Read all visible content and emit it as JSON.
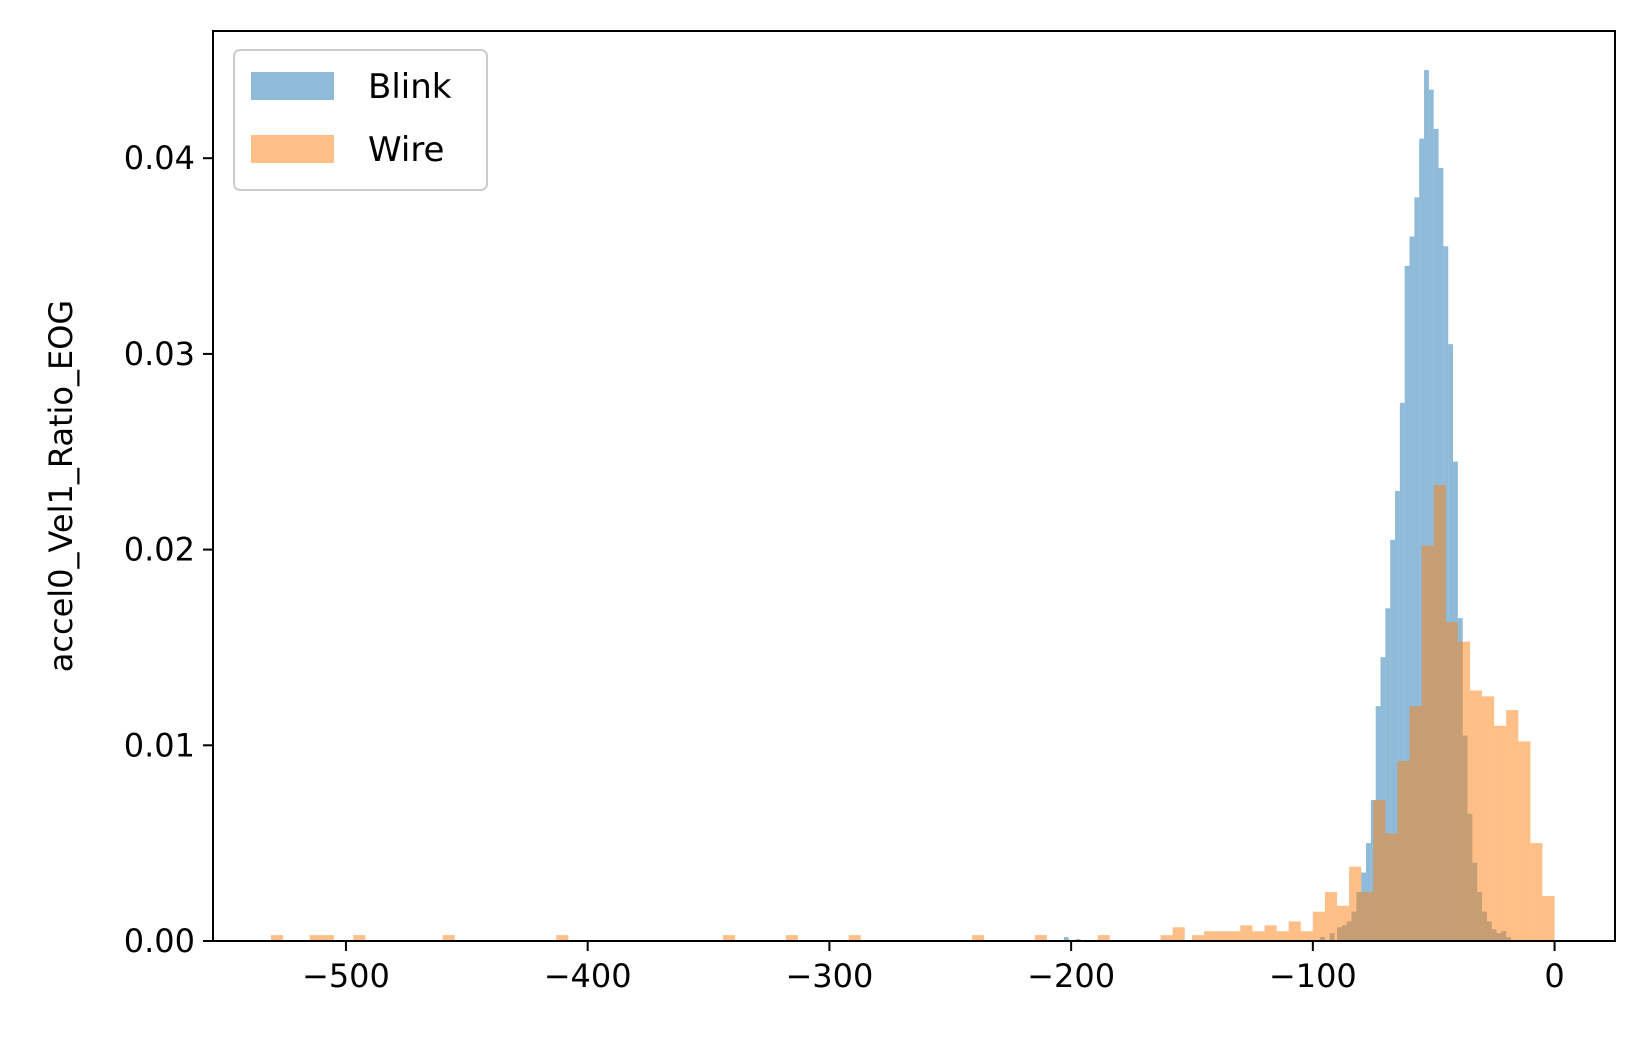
{
  "chart_data": {
    "type": "histogram",
    "title": "",
    "xlabel": "",
    "ylabel": "accel0_Vel1_Ratio_EOG",
    "xlim": [
      -555,
      25
    ],
    "ylim": [
      0,
      0.0465
    ],
    "xticks": [
      -500,
      -400,
      -300,
      -200,
      -100,
      0
    ],
    "xtick_labels": [
      "−500",
      "−400",
      "−300",
      "−200",
      "−100",
      "0"
    ],
    "yticks": [
      0,
      0.01,
      0.02,
      0.03,
      0.04
    ],
    "ytick_labels": [
      "0.00",
      "0.01",
      "0.02",
      "0.03",
      "0.04"
    ],
    "grid": false,
    "legend": {
      "position": "top-left"
    },
    "series": [
      {
        "name": "Blink",
        "color": "#1f77b4",
        "opacity": 0.5,
        "bins": [
          [
            -203,
            0.0002
          ],
          [
            -198,
            0.0001
          ],
          [
            -97,
            0.0002
          ],
          [
            -93,
            0.0004
          ],
          [
            -90,
            0.0007
          ],
          [
            -88,
            0.0008
          ],
          [
            -86,
            0.001
          ],
          [
            -84,
            0.0015
          ],
          [
            -82,
            0.0025
          ],
          [
            -80,
            0.0035
          ],
          [
            -78,
            0.005
          ],
          [
            -76,
            0.0072
          ],
          [
            -74,
            0.012
          ],
          [
            -72,
            0.0145
          ],
          [
            -70,
            0.017
          ],
          [
            -68,
            0.0205
          ],
          [
            -66,
            0.023
          ],
          [
            -64,
            0.0275
          ],
          [
            -62,
            0.0345
          ],
          [
            -60,
            0.036
          ],
          [
            -58,
            0.038
          ],
          [
            -56,
            0.041
          ],
          [
            -54,
            0.0445
          ],
          [
            -52,
            0.0435
          ],
          [
            -50,
            0.0415
          ],
          [
            -48,
            0.0395
          ],
          [
            -46,
            0.0355
          ],
          [
            -44,
            0.0305
          ],
          [
            -42,
            0.0245
          ],
          [
            -40,
            0.0165
          ],
          [
            -38,
            0.0105
          ],
          [
            -36,
            0.0065
          ],
          [
            -34,
            0.004
          ],
          [
            -32,
            0.0025
          ],
          [
            -30,
            0.0015
          ],
          [
            -28,
            0.001
          ],
          [
            -26,
            0.0006
          ],
          [
            -24,
            0.0004
          ],
          [
            -22,
            0.0005
          ],
          [
            -20,
            0.0002
          ]
        ]
      },
      {
        "name": "Wire",
        "color": "#ff7f0e",
        "opacity": 0.5,
        "bins": [
          [
            -531,
            0.0003
          ],
          [
            -515,
            0.0003
          ],
          [
            -510,
            0.0003
          ],
          [
            -497,
            0.0003
          ],
          [
            -460,
            0.0003
          ],
          [
            -413,
            0.0003
          ],
          [
            -344,
            0.0003
          ],
          [
            -318,
            0.0003
          ],
          [
            -292,
            0.0003
          ],
          [
            -241,
            0.0003
          ],
          [
            -215,
            0.0003
          ],
          [
            -189,
            0.0003
          ],
          [
            -163,
            0.0003
          ],
          [
            -158,
            0.0007
          ],
          [
            -150,
            0.0003
          ],
          [
            -145,
            0.0005
          ],
          [
            -140,
            0.0005
          ],
          [
            -135,
            0.0005
          ],
          [
            -130,
            0.0008
          ],
          [
            -125,
            0.0005
          ],
          [
            -120,
            0.0008
          ],
          [
            -115,
            0.0005
          ],
          [
            -110,
            0.001
          ],
          [
            -105,
            0.0005
          ],
          [
            -100,
            0.0015
          ],
          [
            -95,
            0.0025
          ],
          [
            -90,
            0.0018
          ],
          [
            -85,
            0.0038
          ],
          [
            -80,
            0.0025
          ],
          [
            -75,
            0.0072
          ],
          [
            -70,
            0.0055
          ],
          [
            -65,
            0.0092
          ],
          [
            -60,
            0.012
          ],
          [
            -55,
            0.0202
          ],
          [
            -50,
            0.0233
          ],
          [
            -45,
            0.0163
          ],
          [
            -40,
            0.0153
          ],
          [
            -35,
            0.0128
          ],
          [
            -30,
            0.0125
          ],
          [
            -25,
            0.011
          ],
          [
            -20,
            0.0118
          ],
          [
            -15,
            0.0102
          ],
          [
            -10,
            0.005
          ],
          [
            -5,
            0.0023
          ]
        ]
      }
    ]
  }
}
